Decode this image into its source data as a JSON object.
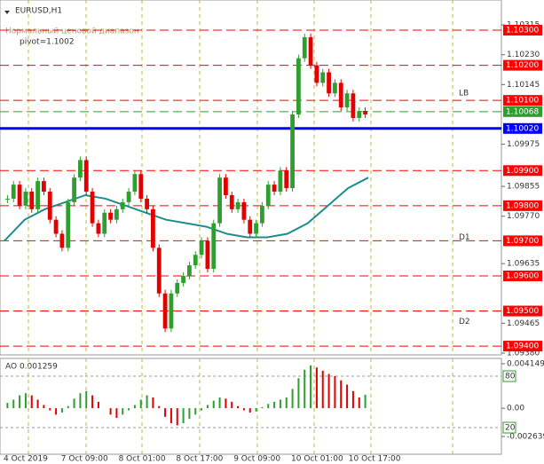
{
  "chart_data": {
    "type": "candlestick",
    "symbol": "EURUSD,H1",
    "indicator": "Нормальный ценовой диапазон",
    "pivot": "pivot=1.1002",
    "ylim": [
      1.09375,
      1.10386
    ],
    "yticks": [
      {
        "value": 1.10315,
        "label": "1.10315"
      },
      {
        "value": 1.1023,
        "label": "1.10230"
      },
      {
        "value": 1.10145,
        "label": "1.10145"
      },
      {
        "value": 1.09975,
        "label": "1.09975"
      },
      {
        "value": 1.09855,
        "label": "1.09855"
      },
      {
        "value": 1.0977,
        "label": "1.09770"
      },
      {
        "value": 1.09635,
        "label": "1.09635"
      },
      {
        "value": 1.09465,
        "label": "1.09465"
      },
      {
        "value": 1.0938,
        "label": "1.09380"
      }
    ],
    "levels": [
      {
        "value": 1.103,
        "label": "1.10300",
        "color": "#ff0000"
      },
      {
        "value": 1.102,
        "label": "1.10200",
        "color": "#ff0000"
      },
      {
        "value": 1.101,
        "label": "1.10100",
        "color": "#ff0000"
      },
      {
        "value": 1.10068,
        "label": "1.10068",
        "color": "#2e9e2e"
      },
      {
        "value": 1.1002,
        "label": "1.10020",
        "color": "#0000ff"
      },
      {
        "value": 1.099,
        "label": "1.09900",
        "color": "#ff0000"
      },
      {
        "value": 1.098,
        "label": "1.09800",
        "color": "#ff0000"
      },
      {
        "value": 1.097,
        "label": "1.09700",
        "color": "#ff0000"
      },
      {
        "value": 1.096,
        "label": "1.09600",
        "color": "#ff0000"
      },
      {
        "value": 1.095,
        "label": "1.09500",
        "color": "#ff0000"
      },
      {
        "value": 1.094,
        "label": "1.09400",
        "color": "#ff0000"
      }
    ],
    "pivot_labels": [
      {
        "label": "LB",
        "value": 1.1012
      },
      {
        "label": "D1",
        "value": 1.0971
      },
      {
        "label": "D2",
        "value": 1.0947
      }
    ],
    "xlabels": [
      "4 Oct 2019",
      "7 Oct 09:00",
      "8 Oct 01:00",
      "8 Oct 17:00",
      "9 Oct 09:00",
      "10 Oct 01:00",
      "10 Oct 17:00"
    ],
    "values": [
      1.0982,
      1.0986,
      1.098,
      1.0984,
      1.0979,
      1.0987,
      1.0984,
      1.0976,
      1.0972,
      1.0968,
      1.0981,
      1.0988,
      1.0993,
      1.0984,
      1.0975,
      1.0972,
      1.0978,
      1.0976,
      1.0979,
      1.0981,
      1.0984,
      1.0989,
      1.0982,
      1.0979,
      1.0968,
      1.0955,
      1.0945,
      1.0955,
      1.0958,
      1.096,
      1.0963,
      1.0966,
      1.097,
      1.0962,
      1.0975,
      1.0988,
      1.0983,
      1.0979,
      1.0981,
      1.0976,
      1.0972,
      1.0975,
      1.098,
      1.0986,
      1.0984,
      1.099,
      1.0985,
      1.1006,
      1.1022,
      1.1028,
      1.102,
      1.1015,
      1.1018,
      1.1012,
      1.1015,
      1.1008,
      1.1012,
      1.1005,
      1.1007,
      1.1006
    ],
    "ma": [
      1.097,
      1.0976,
      1.0979,
      1.0981,
      1.0983,
      1.0982,
      1.098,
      1.0978,
      1.0976,
      1.0975,
      1.0974,
      1.0972,
      1.0971,
      1.0971,
      1.0972,
      1.0975,
      1.098,
      1.0985,
      1.0988
    ],
    "ao": {
      "title": "AO 0.001259",
      "ylim": [
        -0.004295,
        0.004646
      ],
      "yticks": [
        {
          "value": 0.004149,
          "label": "0.004149"
        },
        {
          "value": 0,
          "label": "0.00"
        },
        {
          "value": -0.002639,
          "label": "-0.002639"
        }
      ],
      "levels": [
        80,
        20
      ],
      "values": [
        0.0005,
        0.0008,
        0.0012,
        0.0014,
        0.0012,
        0.0008,
        0.0003,
        -0.0002,
        -0.0006,
        -0.0004,
        0.0002,
        0.0009,
        0.0014,
        0.0016,
        0.0012,
        0.0006,
        0,
        -0.0006,
        -0.0009,
        -0.0006,
        -0.0002,
        0.0003,
        0.0008,
        0.0012,
        0.001,
        0.0002,
        -0.0008,
        -0.0014,
        -0.0016,
        -0.0014,
        -0.001,
        -0.0006,
        -0.0002,
        0.0003,
        0.0007,
        0.001,
        0.0009,
        0.0006,
        0.0002,
        -0.0002,
        -0.0004,
        -0.0003,
        0.0001,
        0.0004,
        0.0006,
        0.0008,
        0.001,
        0.0018,
        0.0028,
        0.0036,
        0.004,
        0.0038,
        0.0035,
        0.0032,
        0.003,
        0.0026,
        0.0022,
        0.0016,
        0.001,
        0.001259
      ]
    }
  }
}
